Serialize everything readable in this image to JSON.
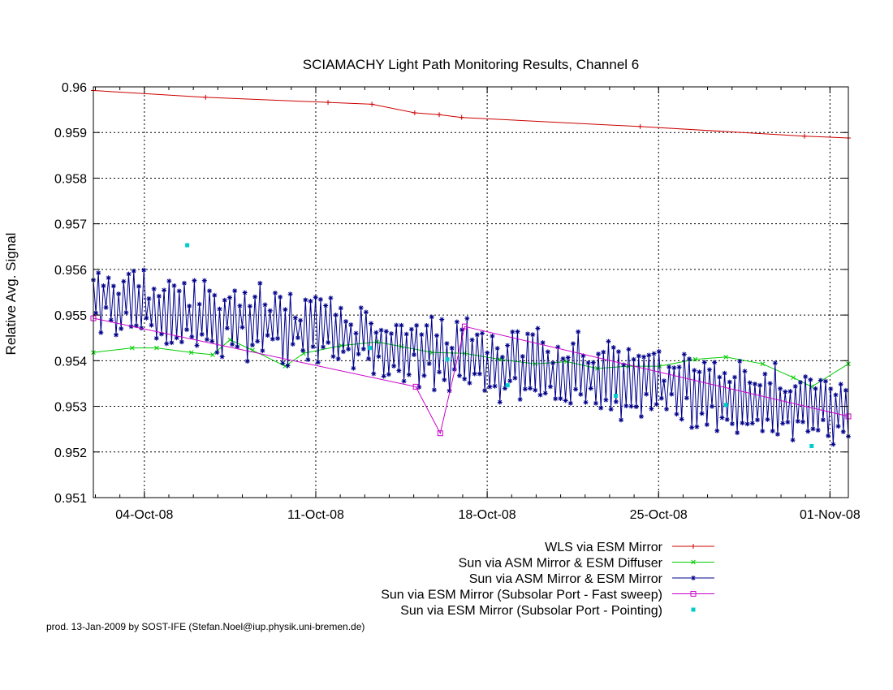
{
  "chart_data": {
    "type": "line",
    "title": "SCIAMACHY Light Path Monitoring Results, Channel 6",
    "xlabel": "",
    "ylabel": "Relative Avg. Signal",
    "x_axis_type": "date",
    "xlim": [
      "2008-10-01T22:00",
      "2008-11-01T18:00"
    ],
    "ylim": [
      0.951,
      0.96
    ],
    "x_ticks": [
      "04-Oct-08",
      "11-Oct-08",
      "18-Oct-08",
      "25-Oct-08",
      "01-Nov-08"
    ],
    "x_tick_dates": [
      "2008-10-04",
      "2008-10-11",
      "2008-10-18",
      "2008-10-25",
      "2008-11-01"
    ],
    "y_ticks": [
      "0.951",
      "0.952",
      "0.953",
      "0.954",
      "0.955",
      "0.956",
      "0.957",
      "0.958",
      "0.959",
      "0.96"
    ],
    "y_tick_values": [
      0.951,
      0.952,
      0.953,
      0.954,
      0.955,
      0.956,
      0.957,
      0.958,
      0.959,
      0.96
    ],
    "grid": true,
    "legend_position": "bottom-right",
    "series": [
      {
        "name": "WLS via ESM Mirror",
        "color": "#cc0000",
        "marker": "plus",
        "line": true,
        "points": [
          [
            "2008-10-01T22:00",
            0.95992
          ],
          [
            "2008-10-06T12:00",
            0.95977
          ],
          [
            "2008-10-11T12:00",
            0.95966
          ],
          [
            "2008-10-13T07:00",
            0.95962
          ],
          [
            "2008-10-15T01:00",
            0.95943
          ],
          [
            "2008-10-16T01:00",
            0.95939
          ],
          [
            "2008-10-16T23:00",
            0.95933
          ],
          [
            "2008-10-24T06:00",
            0.95913
          ],
          [
            "2008-10-30T23:00",
            0.95892
          ],
          [
            "2008-11-01T18:00",
            0.95888
          ]
        ]
      },
      {
        "name": "Sun via ASM Mirror & ESM Diffuser",
        "color": "#00cc00",
        "marker": "x",
        "line": true,
        "points": [
          [
            "2008-10-01T22:00",
            0.95418
          ],
          [
            "2008-10-03T12:00",
            0.95428
          ],
          [
            "2008-10-04T12:00",
            0.95428
          ],
          [
            "2008-10-05T22:00",
            0.95418
          ],
          [
            "2008-10-06T19:00",
            0.95413
          ],
          [
            "2008-10-07T12:00",
            0.95446
          ],
          [
            "2008-10-08T10:00",
            0.95423
          ],
          [
            "2008-10-09T18:00",
            0.95388
          ],
          [
            "2008-10-10T12:00",
            0.95416
          ],
          [
            "2008-10-12T01:00",
            0.95433
          ],
          [
            "2008-10-13T12:00",
            0.95441
          ],
          [
            "2008-10-14T12:00",
            0.95431
          ],
          [
            "2008-10-15T18:00",
            0.95418
          ],
          [
            "2008-10-17T02:00",
            0.95416
          ],
          [
            "2008-10-18T12:00",
            0.95403
          ],
          [
            "2008-10-19T23:00",
            0.95393
          ],
          [
            "2008-10-21T06:00",
            0.95398
          ],
          [
            "2008-10-22T12:00",
            0.95383
          ],
          [
            "2008-10-23T18:00",
            0.95388
          ],
          [
            "2008-10-25T01:00",
            0.95388
          ],
          [
            "2008-10-26T12:00",
            0.95403
          ],
          [
            "2008-10-27T18:00",
            0.95408
          ],
          [
            "2008-10-29T06:00",
            0.95393
          ],
          [
            "2008-10-30T12:00",
            0.95363
          ],
          [
            "2008-10-31T06:00",
            0.95343
          ],
          [
            "2008-11-01T18:00",
            0.95393
          ]
        ]
      },
      {
        "name": "Sun via ASM Mirror & ESM Mirror",
        "color": "#00008b",
        "marker": "star",
        "line": true,
        "generated": true,
        "trend_start": 0.9554,
        "trend_end": 0.9528,
        "amplitude": 0.0008,
        "count": 300
      },
      {
        "name": "Sun via ESM Mirror (Subsolar Port - Fast sweep)",
        "color": "#cc00cc",
        "marker": "square",
        "line": true,
        "points": [
          [
            "2008-10-01T22:00",
            0.95493
          ],
          [
            "2008-10-15T02:00",
            0.95343
          ],
          [
            "2008-10-16T02:00",
            0.95241
          ],
          [
            "2008-10-17T02:00",
            0.95475
          ],
          [
            "2008-11-01T18:00",
            0.95278
          ]
        ]
      },
      {
        "name": "Sun via ESM Mirror (Subsolar Port - Pointing)",
        "color": "#00cccc",
        "marker": "dot",
        "line": false,
        "points": [
          [
            "2008-10-05T18:00",
            0.95653
          ],
          [
            "2008-10-13T05:00",
            0.95428
          ],
          [
            "2008-10-16T09:00",
            0.95403
          ],
          [
            "2008-10-18T20:00",
            0.95346
          ],
          [
            "2008-10-23T06:00",
            0.95323
          ],
          [
            "2008-10-27T18:00",
            0.95303
          ],
          [
            "2008-10-31T06:00",
            0.95213
          ]
        ]
      }
    ]
  },
  "footer": {
    "credit": "prod. 13-Jan-2009 by SOST-IFE (Stefan.Noel@iup.physik.uni-bremen.de)"
  }
}
